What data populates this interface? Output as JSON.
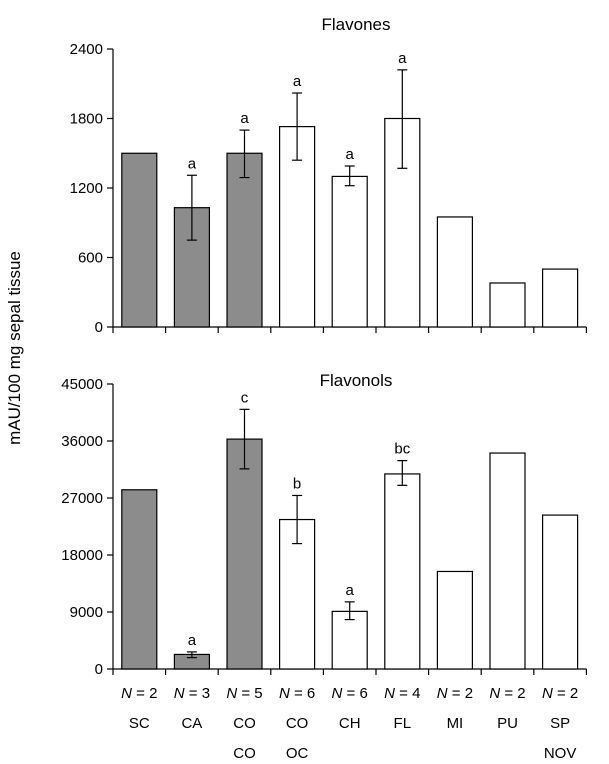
{
  "chart_data": [
    {
      "type": "bar",
      "title": "Flavones",
      "ylabel": "mAU/100 mg sepal tissue",
      "ylim": [
        0,
        2400
      ],
      "yticks": [
        0,
        600,
        1200,
        1800,
        2400
      ],
      "categories": [
        "SC",
        "CA",
        "CO CO",
        "CO OC",
        "CH",
        "FL",
        "MI",
        "PU",
        "SP NOV"
      ],
      "values": [
        1500,
        1030,
        1500,
        1730,
        1300,
        1800,
        950,
        380,
        500
      ],
      "error_low": [
        null,
        750,
        1290,
        1440,
        1220,
        1370,
        null,
        null,
        null
      ],
      "error_high": [
        null,
        1310,
        1700,
        2020,
        1390,
        2220,
        null,
        null,
        null
      ],
      "significance": [
        "",
        "a",
        "a",
        "a",
        "a",
        "a",
        "",
        "",
        ""
      ],
      "bar_fill": [
        "#8c8c8c",
        "#8c8c8c",
        "#8c8c8c",
        "#ffffff",
        "#ffffff",
        "#ffffff",
        "#ffffff",
        "#ffffff",
        "#ffffff"
      ]
    },
    {
      "type": "bar",
      "title": "Flavonols",
      "ylim": [
        0,
        45000
      ],
      "yticks": [
        0,
        9000,
        18000,
        27000,
        36000,
        45000
      ],
      "categories": [
        "SC",
        "CA",
        "CO CO",
        "CO OC",
        "CH",
        "FL",
        "MI",
        "PU",
        "SP NOV"
      ],
      "values": [
        28300,
        2300,
        36300,
        23600,
        9100,
        30800,
        15400,
        34100,
        24300
      ],
      "error_low": [
        null,
        1800,
        31600,
        19800,
        7800,
        29000,
        null,
        null,
        null
      ],
      "error_high": [
        null,
        2700,
        41000,
        27400,
        10600,
        32900,
        null,
        null,
        null
      ],
      "significance": [
        "",
        "a",
        "c",
        "b",
        "a",
        "bc",
        "",
        "",
        ""
      ],
      "bar_fill": [
        "#8c8c8c",
        "#8c8c8c",
        "#8c8c8c",
        "#ffffff",
        "#ffffff",
        "#ffffff",
        "#ffffff",
        "#ffffff",
        "#ffffff"
      ]
    }
  ],
  "n_prefix": "N",
  "n_values": [
    "= 2",
    "= 3",
    "= 5",
    "= 6",
    "= 6",
    "= 4",
    "= 2",
    "= 2",
    "= 2"
  ],
  "group_line1": [
    "SC",
    "CA",
    "CO",
    "CO",
    "CH",
    "FL",
    "MI",
    "PU",
    "SP"
  ],
  "group_line2": [
    "",
    "",
    "CO",
    "OC",
    "",
    "",
    "",
    "",
    "NOV"
  ]
}
